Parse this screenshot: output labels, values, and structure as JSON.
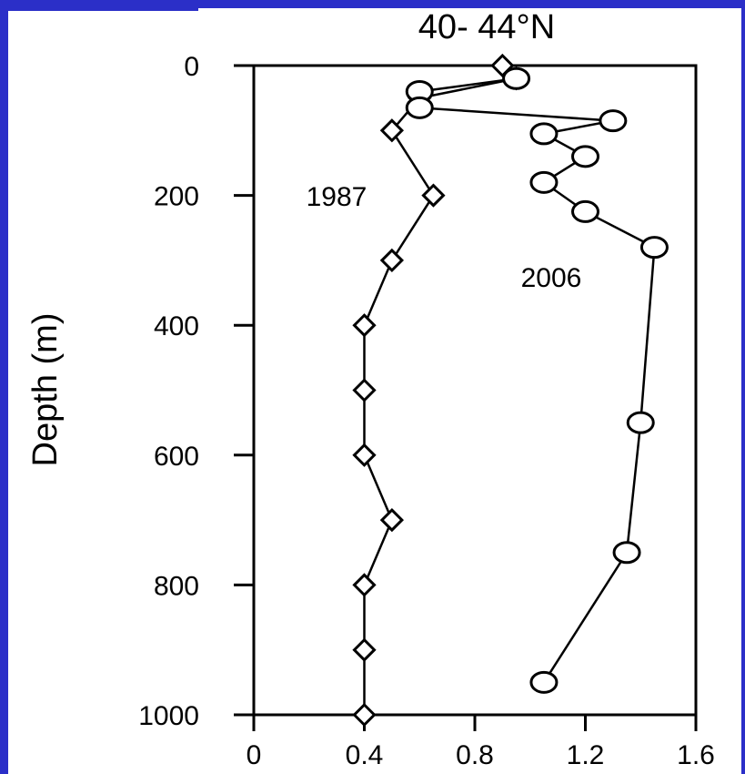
{
  "chart_data": {
    "type": "line",
    "title": "40- 44°N",
    "xlabel": "",
    "ylabel": "Depth (m)",
    "xlim": [
      0,
      1.6
    ],
    "ylim": [
      0,
      1000
    ],
    "y_inverted": true,
    "x_ticks": [
      "0",
      "0.4",
      "0.8",
      "1.2",
      "1.6"
    ],
    "y_ticks": [
      "0",
      "200",
      "400",
      "600",
      "800",
      "1000"
    ],
    "grid": false,
    "series": [
      {
        "name": "1987",
        "marker": "diamond",
        "points": [
          {
            "x": 0.9,
            "y": 0
          },
          {
            "x": 0.95,
            "y": 20
          },
          {
            "x": 0.6,
            "y": 50
          },
          {
            "x": 0.5,
            "y": 100
          },
          {
            "x": 0.65,
            "y": 200
          },
          {
            "x": 0.5,
            "y": 300
          },
          {
            "x": 0.4,
            "y": 400
          },
          {
            "x": 0.4,
            "y": 500
          },
          {
            "x": 0.4,
            "y": 600
          },
          {
            "x": 0.5,
            "y": 700
          },
          {
            "x": 0.4,
            "y": 800
          },
          {
            "x": 0.4,
            "y": 900
          },
          {
            "x": 0.4,
            "y": 1000
          }
        ]
      },
      {
        "name": "2006",
        "marker": "circle",
        "points": [
          {
            "x": 0.95,
            "y": 20
          },
          {
            "x": 0.6,
            "y": 40
          },
          {
            "x": 0.6,
            "y": 65
          },
          {
            "x": 1.3,
            "y": 85
          },
          {
            "x": 1.05,
            "y": 105
          },
          {
            "x": 1.2,
            "y": 140
          },
          {
            "x": 1.05,
            "y": 180
          },
          {
            "x": 1.2,
            "y": 225
          },
          {
            "x": 1.45,
            "y": 280
          },
          {
            "x": 1.4,
            "y": 550
          },
          {
            "x": 1.35,
            "y": 750
          },
          {
            "x": 1.05,
            "y": 950
          }
        ]
      }
    ]
  }
}
